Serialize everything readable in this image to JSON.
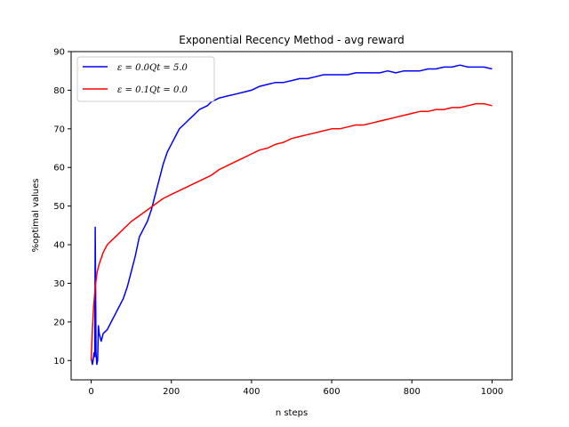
{
  "chart_data": {
    "type": "line",
    "title": "Exponential Recency Method - avg reward",
    "xlabel": "n steps",
    "ylabel": "%optimal values",
    "xlim": [
      -50,
      1050
    ],
    "ylim": [
      5,
      90
    ],
    "xticks": [
      0,
      200,
      400,
      600,
      800,
      1000
    ],
    "yticks": [
      10,
      20,
      30,
      40,
      50,
      60,
      70,
      80,
      90
    ],
    "grid": false,
    "legend_position": "top-left",
    "series": [
      {
        "name": "ε = 0.0Qt = 5.0",
        "color": "#0000ff",
        "x": [
          0,
          3,
          5,
          7,
          9,
          10,
          12,
          14,
          16,
          18,
          20,
          25,
          30,
          40,
          50,
          60,
          70,
          80,
          90,
          100,
          110,
          120,
          130,
          140,
          150,
          160,
          170,
          180,
          190,
          200,
          210,
          220,
          230,
          240,
          250,
          260,
          270,
          280,
          290,
          300,
          320,
          340,
          360,
          380,
          400,
          420,
          440,
          460,
          480,
          500,
          520,
          540,
          560,
          580,
          600,
          620,
          640,
          660,
          680,
          700,
          720,
          740,
          760,
          780,
          800,
          820,
          840,
          860,
          880,
          900,
          920,
          940,
          960,
          980,
          1000
        ],
        "y": [
          11,
          9,
          10,
          12,
          11,
          44.5,
          12,
          9,
          10,
          19,
          17,
          15,
          17,
          18,
          20,
          22,
          24,
          26,
          29,
          33,
          37,
          42,
          44,
          46,
          49,
          53,
          57,
          61,
          64,
          66,
          68,
          70,
          71,
          72,
          73,
          74,
          75,
          75.5,
          76,
          77,
          78,
          78.5,
          79,
          79.5,
          80,
          81,
          81.5,
          82,
          82,
          82.5,
          83,
          83,
          83.5,
          84,
          84,
          84,
          84,
          84.5,
          84.5,
          84.5,
          84.5,
          85,
          84.5,
          85,
          85,
          85,
          85.5,
          85.5,
          86,
          86,
          86.5,
          86,
          86,
          86,
          85.5
        ]
      },
      {
        "name": "ε = 0.1Qt = 0.0",
        "color": "#ff0000",
        "x": [
          0,
          3,
          6,
          10,
          15,
          20,
          30,
          40,
          50,
          60,
          80,
          100,
          120,
          140,
          160,
          180,
          200,
          220,
          240,
          260,
          280,
          300,
          320,
          340,
          360,
          380,
          400,
          420,
          440,
          460,
          480,
          500,
          520,
          540,
          560,
          580,
          600,
          620,
          640,
          660,
          680,
          700,
          720,
          740,
          760,
          780,
          800,
          820,
          840,
          860,
          880,
          900,
          920,
          940,
          960,
          980,
          1000
        ],
        "y": [
          10,
          18,
          24,
          29,
          33,
          35,
          38,
          40,
          41,
          42,
          44,
          46,
          47.5,
          49,
          50.5,
          52,
          53,
          54,
          55,
          56,
          57,
          58,
          59.5,
          60.5,
          61.5,
          62.5,
          63.5,
          64.5,
          65,
          66,
          66.5,
          67.5,
          68,
          68.5,
          69,
          69.5,
          70,
          70,
          70.5,
          71,
          71,
          71.5,
          72,
          72.5,
          73,
          73.5,
          74,
          74.5,
          74.5,
          75,
          75,
          75.5,
          75.5,
          76,
          76.5,
          76.5,
          76
        ]
      }
    ]
  }
}
